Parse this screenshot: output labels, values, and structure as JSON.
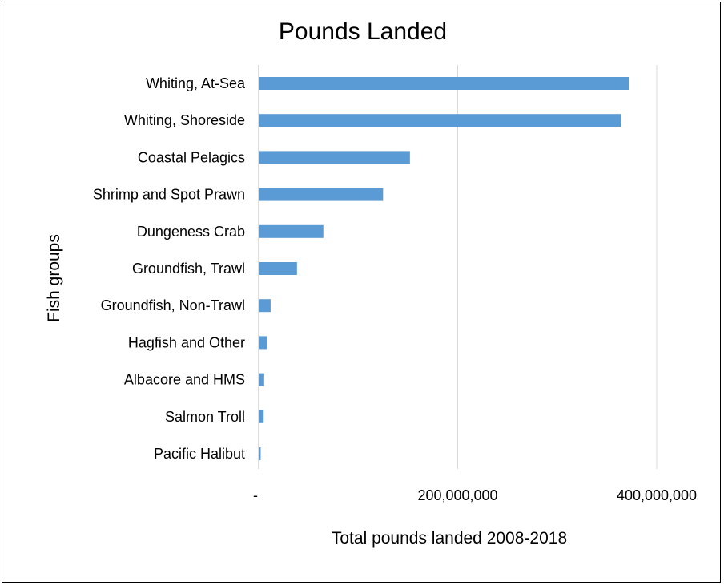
{
  "chart_data": {
    "type": "bar",
    "orientation": "horizontal",
    "title": "Pounds Landed",
    "xlabel": "Total pounds landed 2008-2018",
    "ylabel": "Fish groups",
    "xlim": [
      0,
      400000000
    ],
    "xticks": [
      {
        "value": 0,
        "label": "-"
      },
      {
        "value": 200000000,
        "label": "200,000,000"
      },
      {
        "value": 400000000,
        "label": "400,000,000"
      }
    ],
    "grid": "vertical",
    "legend": "none",
    "bar_color": "#5B9BD5",
    "categories": [
      "Whiting, At-Sea",
      "Whiting, Shoreside",
      "Coastal Pelagics",
      "Shrimp and Spot Prawn",
      "Dungeness Crab",
      "Groundfish, Trawl",
      "Groundfish, Non-Trawl",
      "Hagfish and Other",
      "Albacore and HMS",
      "Salmon Troll",
      "Pacific Halibut"
    ],
    "values": [
      372000000,
      364000000,
      152000000,
      125000000,
      65000000,
      38500000,
      12000000,
      8500000,
      5500000,
      5000000,
      1500000
    ]
  }
}
